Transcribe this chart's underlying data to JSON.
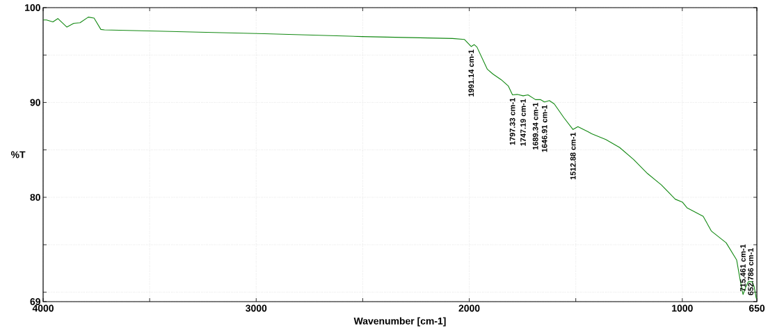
{
  "chart_data": {
    "type": "line",
    "xlabel": "Wavenumber [cm-1]",
    "ylabel": "%T",
    "xlim": [
      4000,
      650
    ],
    "ylim": [
      69,
      100
    ],
    "xticks": [
      4000,
      {
        "value": 3500,
        "label": null
      },
      3000,
      {
        "value": 2500,
        "label": null
      },
      2000,
      {
        "value": 1500,
        "label": null
      },
      1000,
      650
    ],
    "yticks": [
      100,
      {
        "value": 95,
        "label": null
      },
      90,
      {
        "value": 85,
        "label": null
      },
      80,
      {
        "value": 75,
        "label": null
      },
      {
        "value": 70,
        "label": null
      },
      69
    ],
    "grid": true,
    "series": [
      {
        "color": "#118811",
        "x": [
          4000,
          3984,
          3954,
          3931,
          3889,
          3856,
          3827,
          3788,
          3761,
          3729,
          3712,
          2961,
          2503,
          2078,
          2023,
          1991,
          1977,
          1964,
          1915,
          1889,
          1850,
          1817,
          1797,
          1775,
          1747,
          1724,
          1689,
          1666,
          1647,
          1624,
          1601,
          1556,
          1513,
          1490,
          1441,
          1425,
          1359,
          1294,
          1229,
          1163,
          1098,
          1033,
          1000,
          978,
          902,
          864,
          794,
          745,
          729,
          715,
          701,
          690,
          673,
          663,
          653,
          650
        ],
        "values": [
          98.7,
          98.7,
          98.5,
          98.85,
          97.95,
          98.35,
          98.4,
          99.0,
          98.9,
          97.7,
          97.65,
          97.25,
          96.95,
          96.75,
          96.65,
          95.9,
          96.1,
          95.85,
          93.5,
          93.0,
          92.4,
          91.75,
          90.8,
          90.85,
          90.7,
          90.8,
          90.3,
          90.3,
          90.05,
          90.2,
          89.85,
          88.4,
          87.15,
          87.45,
          86.9,
          86.7,
          86.1,
          85.25,
          84.0,
          82.5,
          81.3,
          79.8,
          79.5,
          78.9,
          78.0,
          76.45,
          75.2,
          73.4,
          71.35,
          69.75,
          70.6,
          71.1,
          71.1,
          70.6,
          69.35,
          69.4
        ]
      }
    ],
    "annotations": [
      {
        "text": "1991.14 cm-1",
        "x": 1991.14,
        "y": 95.9
      },
      {
        "text": "1797.33 cm-1",
        "x": 1797.33,
        "y": 90.8
      },
      {
        "text": "1747.19 cm-1",
        "x": 1747.19,
        "y": 90.7
      },
      {
        "text": "1689.34 cm-1",
        "x": 1689.34,
        "y": 90.3
      },
      {
        "text": "1646.91 cm-1",
        "x": 1646.91,
        "y": 90.05
      },
      {
        "text": "1512.88 cm-1",
        "x": 1512.88,
        "y": 87.15
      },
      {
        "text": "715.461 cm-1",
        "x": 715.461,
        "y": 69.75
      },
      {
        "text": "652.786 cm-1",
        "x": 652.786,
        "y": 69.35
      }
    ]
  }
}
